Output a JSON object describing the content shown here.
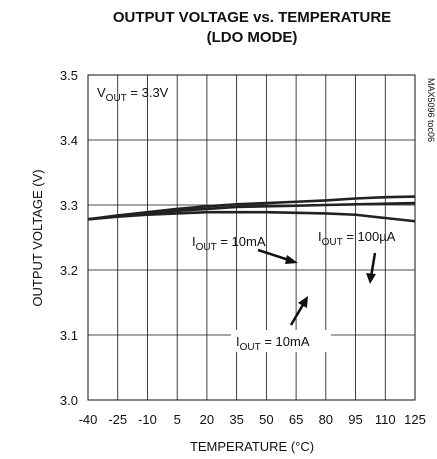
{
  "chart_data": {
    "type": "line",
    "title": "OUTPUT VOLTAGE vs. TEMPERATURE",
    "subtitle": "(LDO MODE)",
    "x_label": "TEMPERATURE (°C)",
    "y_label": "OUTPUT VOLTAGE (V)",
    "side_note": "MAX5096 toc06",
    "x": [
      -40,
      -25,
      -10,
      5,
      20,
      35,
      50,
      65,
      80,
      95,
      110,
      125
    ],
    "series": [
      {
        "color": "#222222",
        "values": [
          3.278,
          3.284,
          3.289,
          3.294,
          3.298,
          3.301,
          3.303,
          3.305,
          3.307,
          3.31,
          3.312,
          3.313
        ]
      },
      {
        "color": "#222222",
        "values": [
          3.278,
          3.283,
          3.287,
          3.291,
          3.294,
          3.297,
          3.298,
          3.299,
          3.3,
          3.301,
          3.302,
          3.303
        ]
      },
      {
        "color": "#222222",
        "values": [
          3.278,
          3.282,
          3.285,
          3.287,
          3.289,
          3.289,
          3.289,
          3.288,
          3.287,
          3.285,
          3.28,
          3.275
        ]
      }
    ],
    "annotations": [
      {
        "parts": [
          "V",
          "OUT",
          " = 3.3V"
        ]
      },
      {
        "parts": [
          "I",
          "OUT",
          " = 10mA"
        ]
      },
      {
        "parts": [
          "I",
          "OUT",
          " = 100µA"
        ]
      },
      {
        "parts": [
          "I",
          "OUT",
          " = 10mA"
        ]
      }
    ],
    "xlim": [
      -40,
      125
    ],
    "xticks": [
      -40,
      -25,
      -10,
      5,
      20,
      35,
      50,
      65,
      80,
      95,
      110,
      125
    ],
    "ylim": [
      3.0,
      3.5
    ],
    "yticks": [
      {
        "value": 3,
        "label": "3.0"
      },
      3.1,
      3.2,
      3.3,
      3.4,
      3.5
    ],
    "grid": true
  }
}
